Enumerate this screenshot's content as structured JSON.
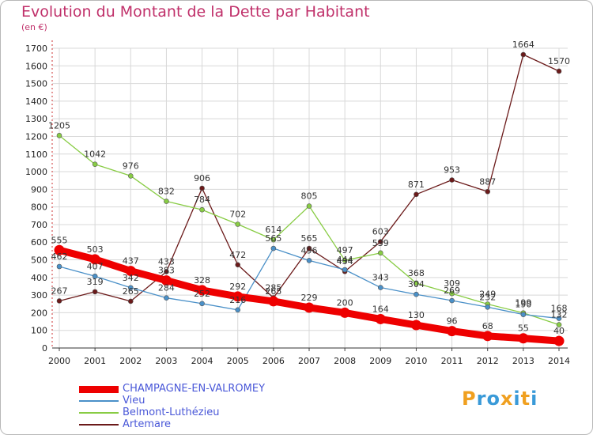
{
  "title": "Evolution du Montant de la Dette par Habitant",
  "subtitle": "(en €)",
  "logo": {
    "text": "Proxiti",
    "colors": [
      "#f0a020",
      "#3a9ad8",
      "#3a9ad8",
      "#f0a020",
      "#3a9ad8",
      "#f0a020",
      "#3a9ad8"
    ]
  },
  "chart_data": {
    "type": "line",
    "title": "Evolution du Montant de la Dette par Habitant",
    "ylabel": "(en €)",
    "x": [
      "2000",
      "2001",
      "2002",
      "2003",
      "2004",
      "2005",
      "2006",
      "2007",
      "2008",
      "2009",
      "2010",
      "2011",
      "2012",
      "2013",
      "2014"
    ],
    "ylim": [
      0,
      1700
    ],
    "yticks": [
      0,
      100,
      200,
      300,
      400,
      500,
      600,
      700,
      800,
      900,
      1000,
      1100,
      1200,
      1300,
      1400,
      1500,
      1600,
      1700
    ],
    "grid": true,
    "legend": "bottom-left",
    "series": [
      {
        "name": "CHAMPAGNE-EN-VALROMEY",
        "color": "#ee0000",
        "values": [
          555,
          503,
          437,
          383,
          328,
          292,
          265,
          229,
          200,
          164,
          130,
          96,
          68,
          55,
          40
        ]
      },
      {
        "name": "Vieu",
        "color": "#4a90c8",
        "values": [
          462,
          407,
          342,
          284,
          252,
          216,
          565,
          496,
          444,
          343,
          304,
          269,
          232,
          190,
          168
        ]
      },
      {
        "name": "Belmont-Luthézieu",
        "color": "#88cc44",
        "values": [
          1205,
          1042,
          976,
          832,
          784,
          702,
          614,
          805,
          497,
          539,
          368,
          309,
          249,
          199,
          132
        ]
      },
      {
        "name": "Artemare",
        "color": "#6b1a1a",
        "values": [
          267,
          319,
          265,
          433,
          906,
          472,
          285,
          565,
          434,
          603,
          871,
          953,
          887,
          1664,
          1570
        ]
      }
    ]
  }
}
